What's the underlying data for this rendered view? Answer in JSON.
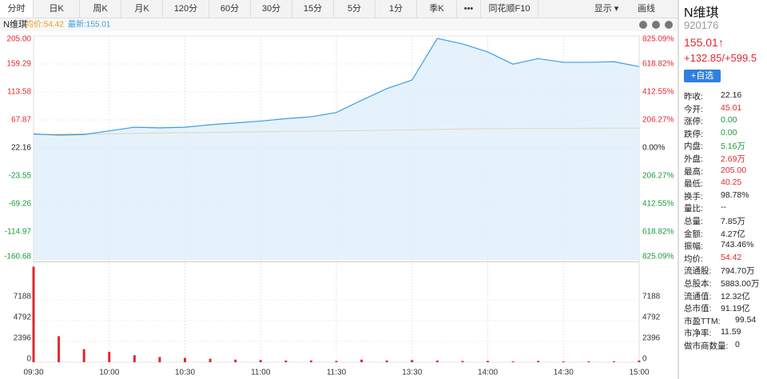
{
  "toolbar": {
    "tabs": [
      "分时",
      "日K",
      "周K",
      "月K",
      "120分",
      "60分",
      "30分",
      "15分",
      "5分",
      "1分",
      "季K",
      "•••",
      "同花顺F10"
    ],
    "right": [
      "显示 ▾",
      "画线"
    ]
  },
  "chart_header": {
    "name": "N维琪"
  },
  "quote": {
    "name": "N维琪",
    "code": "920176",
    "price": "155.01↑",
    "change": "+132.85/+599.5",
    "button": "+自选"
  },
  "panel": [
    {
      "label": "昨收:",
      "value": "22.16",
      "color": "#222222"
    },
    {
      "label": "今开:",
      "value": "45.01",
      "color": "#e0282e"
    },
    {
      "label": "涨停:",
      "value": "0.00",
      "color": "#1a9a3a"
    },
    {
      "label": "跌停:",
      "value": "0.00",
      "color": "#1a9a3a"
    },
    {
      "label": "内盘:",
      "value": "5.16万",
      "color": "#1a9a3a"
    },
    {
      "label": "外盘:",
      "value": "2.69万",
      "color": "#e0282e"
    },
    {
      "label": "最高:",
      "value": "205.00",
      "color": "#e0282e"
    },
    {
      "label": "最低:",
      "value": "40.25",
      "color": "#e0282e"
    },
    {
      "label": "换手:",
      "value": "98.78%",
      "color": "#222222"
    },
    {
      "label": "量比:",
      "value": "--",
      "color": "#222222"
    },
    {
      "label": "总量:",
      "value": "7.85万",
      "color": "#222222"
    },
    {
      "label": "金额:",
      "value": "4.27亿",
      "color": "#222222"
    },
    {
      "label": "振幅:",
      "value": "743.46%",
      "color": "#222222"
    },
    {
      "label": "均价:",
      "value": "54.42",
      "color": "#e0282e"
    },
    {
      "label": "流通股:",
      "value": "794.70万",
      "color": "#222222"
    },
    {
      "label": "总股本:",
      "value": "5883.00万",
      "color": "#222222"
    },
    {
      "label": "流通值:",
      "value": "12.32亿",
      "color": "#222222"
    },
    {
      "label": "总市值:",
      "value": "91.19亿",
      "color": "#222222"
    },
    {
      "label": "市盈TTM:",
      "value": "99.54",
      "color": "#222222"
    },
    {
      "label": "市净率:",
      "value": "11.59",
      "color": "#222222"
    },
    {
      "label": "做市商数量:",
      "value": "0",
      "color": "#222222"
    }
  ],
  "chart_data": [
    {
      "type": "line",
      "categories": [
        "09:30",
        null,
        null,
        "10:00",
        null,
        null,
        "10:30",
        null,
        null,
        "11:00",
        null,
        null,
        "11:30",
        null,
        null,
        "13:30",
        null,
        null,
        "14:00",
        null,
        null,
        "14:30",
        null,
        null,
        "15:00"
      ],
      "series": [
        {
          "name": "均价:54.42",
          "color": "#f09a2a",
          "values": [
            44,
            44,
            44.5,
            45,
            46,
            46.5,
            47,
            47.5,
            48,
            48.5,
            49,
            49.5,
            50,
            50.5,
            51,
            51.5,
            52.5,
            53,
            53.5,
            53.8,
            54,
            54.1,
            54.2,
            54.3,
            54.42
          ]
        },
        {
          "name": "最新:155.01",
          "color": "#3a9ee8",
          "values": [
            45,
            43,
            44,
            50,
            56,
            55,
            56,
            60,
            63,
            66,
            70,
            73,
            80,
            100,
            119,
            133,
            201,
            192,
            179,
            159,
            168,
            162,
            162,
            163,
            155.01
          ]
        }
      ],
      "ylim": [
        -160.68,
        205
      ],
      "yticks": [
        {
          "value": 205,
          "label": "205.00"
        },
        {
          "value": 159.29,
          "label": "159.29"
        },
        {
          "value": 113.58,
          "label": "113.58"
        },
        {
          "value": 67.87,
          "label": "67.87"
        },
        {
          "value": 22.16,
          "label": "22.16"
        },
        {
          "value": -23.55,
          "label": "-23.55"
        },
        {
          "value": -69.26,
          "label": "-69.26"
        },
        {
          "value": -114.97,
          "label": "-114.97"
        },
        {
          "value": -160.68,
          "label": "-160.68"
        }
      ],
      "y2lim": [
        -825.09,
        825.09
      ],
      "y2ticks": [
        {
          "value": 825.09,
          "label": "825.09%"
        },
        {
          "value": 618.82,
          "label": "618.82%"
        },
        {
          "value": 412.55,
          "label": "412.55%"
        },
        {
          "value": 206.27,
          "label": "206.27%"
        },
        {
          "value": 0,
          "label": "0.00%"
        },
        {
          "value": -206.27,
          "label": "206.27%"
        },
        {
          "value": -412.55,
          "label": "412.55%"
        },
        {
          "value": -618.82,
          "label": "618.82%"
        },
        {
          "value": -825.09,
          "label": "825.09%"
        }
      ],
      "grid": true
    },
    {
      "type": "bar",
      "color": "#e0282e",
      "values": [
        11000,
        3000,
        1500,
        1200,
        800,
        600,
        500,
        400,
        300,
        250,
        200,
        200,
        150,
        300,
        200,
        250,
        200,
        150,
        150,
        100,
        150,
        100,
        100,
        100,
        200
      ],
      "ylim": [
        0,
        11330
      ],
      "yticks": [
        0,
        2396,
        4792,
        7188
      ],
      "grid": true
    }
  ]
}
